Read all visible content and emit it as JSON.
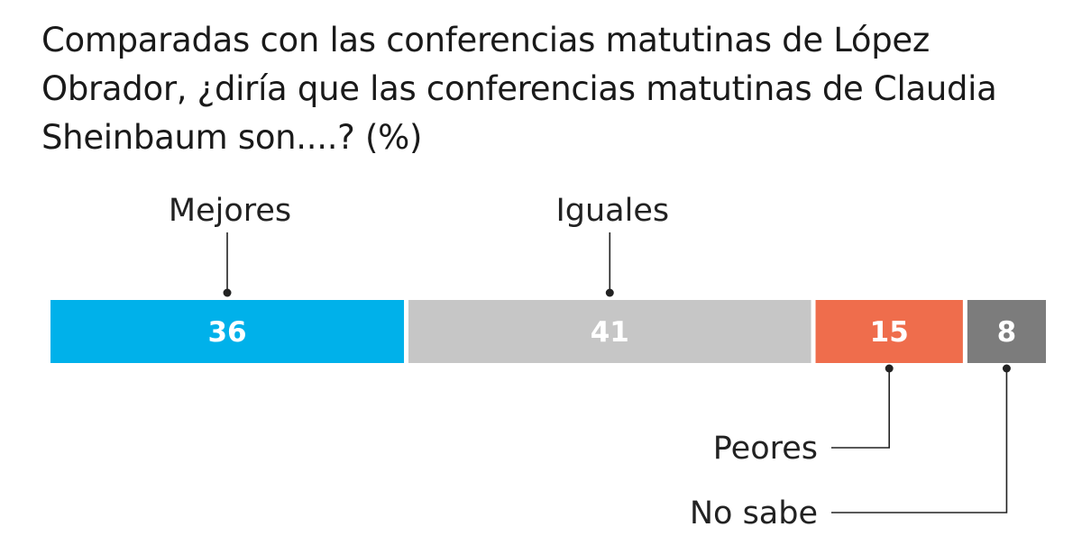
{
  "chart_data": {
    "type": "bar",
    "layout": "stacked-horizontal-100",
    "title": "Comparadas con las conferencias matutinas de López Obrador, ¿diría que las conferencias matutinas de Claudia Sheinbaum son....? (%)",
    "unit": "%",
    "categories": [
      "Mejores",
      "Iguales",
      "Peores",
      "No sabe"
    ],
    "values": [
      36,
      41,
      15,
      8
    ],
    "value_labels": [
      "36",
      "41",
      "15",
      "8"
    ],
    "colors": [
      "#00b1ea",
      "#c6c6c6",
      "#ef6d4c",
      "#7c7c7c"
    ],
    "label_placement": [
      "above",
      "above",
      "below",
      "below"
    ]
  }
}
